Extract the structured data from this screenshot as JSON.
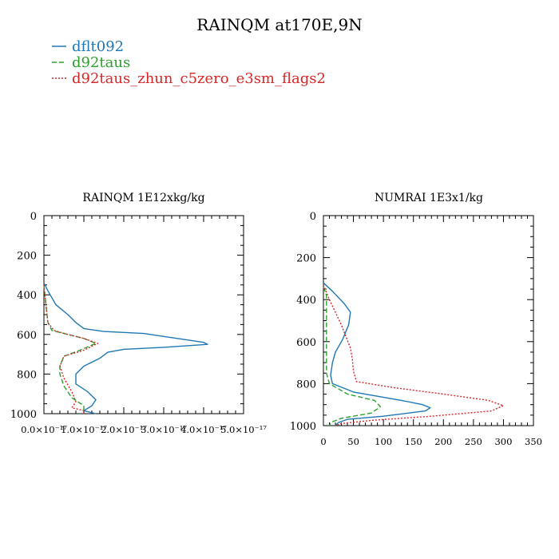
{
  "figure": {
    "title": "RAINQM at170E,9N",
    "legend": [
      {
        "name": "dflt092",
        "color": "#1f77b4",
        "dash": "solid"
      },
      {
        "name": "d92taus",
        "color": "#2ca02c",
        "dash": "dashed"
      },
      {
        "name": "d92taus_zhun_c5zero_e3sm_flags2",
        "color": "#d62728",
        "dash": "dotted"
      }
    ]
  },
  "chart_data": [
    {
      "type": "line",
      "title": "RAINQM  1E12xkg/kg",
      "xlim": [
        0,
        5e-17
      ],
      "ylim": [
        1000,
        0
      ],
      "x_ticks": [
        0,
        1e-17,
        2e-17,
        3e-17,
        4e-17,
        5e-17
      ],
      "x_tick_labels": [
        "0.0×10⁻¹⁷",
        "1.0×10⁻¹⁷",
        "2.0×10⁻¹⁷",
        "3.0×10⁻¹⁷",
        "4.0×10⁻¹⁷",
        "5.0×10⁻¹⁷"
      ],
      "y_ticks": [
        0,
        200,
        400,
        600,
        800,
        1000
      ],
      "y_tick_labels": [
        "0",
        "200",
        "400",
        "600",
        "800",
        "1000"
      ],
      "series": [
        {
          "name": "dflt092",
          "color": "#1f77b4",
          "dash": "solid",
          "points": [
            [
              0,
              340
            ],
            [
              1e-18,
              380
            ],
            [
              3e-18,
              450
            ],
            [
              6e-18,
              500
            ],
            [
              8e-18,
              540
            ],
            [
              1e-17,
              570
            ],
            [
              1.5e-17,
              585
            ],
            [
              2.5e-17,
              595
            ],
            [
              3e-17,
              610
            ],
            [
              4e-17,
              640
            ],
            [
              4.1e-17,
              650
            ],
            [
              3e-17,
              665
            ],
            [
              2e-17,
              675
            ],
            [
              1.6e-17,
              690
            ],
            [
              1.4e-17,
              720
            ],
            [
              1e-17,
              760
            ],
            [
              8e-18,
              800
            ],
            [
              8e-18,
              850
            ],
            [
              1.1e-17,
              890
            ],
            [
              1.3e-17,
              930
            ],
            [
              1.2e-17,
              960
            ],
            [
              1e-17,
              985
            ],
            [
              1.3e-17,
              1000
            ]
          ]
        },
        {
          "name": "d92taus",
          "color": "#2ca02c",
          "dash": "dashed",
          "points": [
            [
              0,
              350
            ],
            [
              5e-19,
              450
            ],
            [
              1e-18,
              540
            ],
            [
              2e-18,
              580
            ],
            [
              6e-18,
              600
            ],
            [
              1e-17,
              620
            ],
            [
              1.3e-17,
              645
            ],
            [
              9e-18,
              680
            ],
            [
              5e-18,
              710
            ],
            [
              4e-18,
              760
            ],
            [
              4e-18,
              800
            ],
            [
              5e-18,
              860
            ],
            [
              7e-18,
              920
            ],
            [
              1e-17,
              960
            ],
            [
              1e-17,
              990
            ],
            [
              1e-17,
              1000
            ]
          ]
        },
        {
          "name": "d92taus_zhun_c5zero_e3sm_flags2",
          "color": "#d62728",
          "dash": "dotted",
          "points": [
            [
              0,
              350
            ],
            [
              5e-19,
              450
            ],
            [
              1e-18,
              540
            ],
            [
              2.5e-18,
              580
            ],
            [
              6e-18,
              600
            ],
            [
              1e-17,
              620
            ],
            [
              1.35e-17,
              645
            ],
            [
              1e-17,
              680
            ],
            [
              5e-18,
              710
            ],
            [
              4e-18,
              760
            ],
            [
              5e-18,
              820
            ],
            [
              7e-18,
              890
            ],
            [
              8e-18,
              940
            ],
            [
              7e-18,
              970
            ],
            [
              1e-17,
              985
            ],
            [
              1e-17,
              1000
            ]
          ]
        }
      ]
    },
    {
      "type": "line",
      "title": "NUMRAI  1E3x1/kg",
      "xlim": [
        0,
        350
      ],
      "ylim": [
        1000,
        0
      ],
      "x_ticks": [
        0,
        50,
        100,
        150,
        200,
        250,
        300,
        350
      ],
      "x_tick_labels": [
        "0",
        "50",
        "100",
        "150",
        "200",
        "250",
        "300",
        "350"
      ],
      "y_ticks": [
        0,
        200,
        400,
        600,
        800,
        1000
      ],
      "y_tick_labels": [
        "0",
        "200",
        "400",
        "600",
        "800",
        "1000"
      ],
      "series": [
        {
          "name": "dflt092",
          "color": "#1f77b4",
          "dash": "solid",
          "points": [
            [
              0,
              320
            ],
            [
              15,
              360
            ],
            [
              35,
              420
            ],
            [
              45,
              460
            ],
            [
              42,
              520
            ],
            [
              32,
              590
            ],
            [
              20,
              650
            ],
            [
              15,
              700
            ],
            [
              12,
              760
            ],
            [
              15,
              800
            ],
            [
              50,
              840
            ],
            [
              130,
              880
            ],
            [
              165,
              900
            ],
            [
              178,
              915
            ],
            [
              170,
              930
            ],
            [
              100,
              955
            ],
            [
              40,
              970
            ],
            [
              25,
              985
            ],
            [
              20,
              1000
            ]
          ]
        },
        {
          "name": "d92taus",
          "color": "#2ca02c",
          "dash": "dashed",
          "points": [
            [
              0,
              340
            ],
            [
              5,
              380
            ],
            [
              5,
              450
            ],
            [
              5,
              550
            ],
            [
              5,
              650
            ],
            [
              5,
              750
            ],
            [
              10,
              800
            ],
            [
              40,
              850
            ],
            [
              85,
              880
            ],
            [
              95,
              910
            ],
            [
              80,
              940
            ],
            [
              30,
              965
            ],
            [
              12,
              985
            ],
            [
              10,
              1000
            ]
          ]
        },
        {
          "name": "d92taus_zhun_c5zero_e3sm_flags2",
          "color": "#d62728",
          "dash": "dotted",
          "points": [
            [
              0,
              330
            ],
            [
              10,
              400
            ],
            [
              20,
              460
            ],
            [
              30,
              520
            ],
            [
              38,
              580
            ],
            [
              45,
              630
            ],
            [
              48,
              680
            ],
            [
              50,
              740
            ],
            [
              55,
              790
            ],
            [
              120,
              820
            ],
            [
              200,
              850
            ],
            [
              275,
              880
            ],
            [
              300,
              905
            ],
            [
              280,
              930
            ],
            [
              180,
              955
            ],
            [
              80,
              975
            ],
            [
              30,
              990
            ],
            [
              20,
              1000
            ]
          ]
        }
      ]
    }
  ]
}
